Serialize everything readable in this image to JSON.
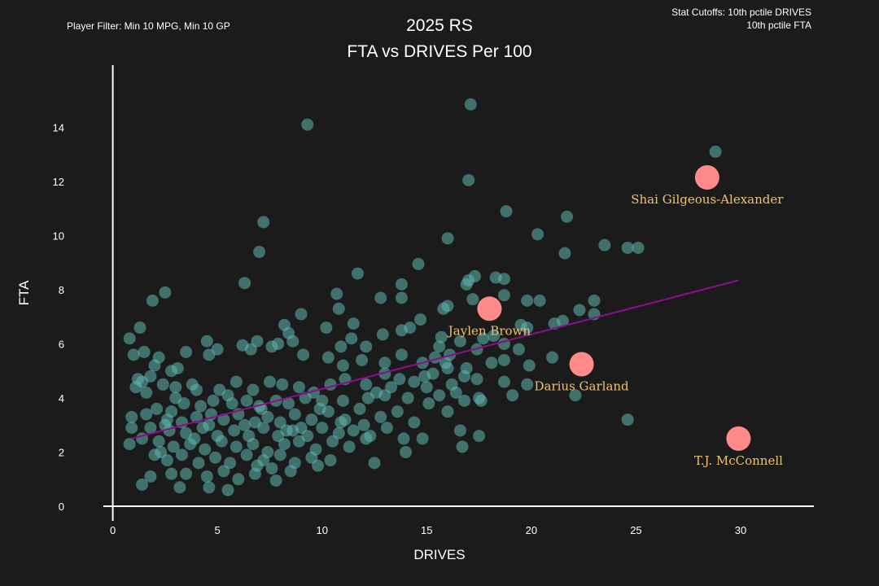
{
  "chart_data": {
    "type": "scatter",
    "title": "2025 RS",
    "subtitle": "FTA vs DRIVES Per 100",
    "filter_note": "Player Filter: Min 10 MPG, Min 10 GP",
    "cutoff_note_line1": "Stat Cutoffs: 10th pctile DRIVES",
    "cutoff_note_line2": "10th pctile FTA",
    "xlabel": "DRIVES",
    "ylabel": "FTA",
    "xlim": [
      -2.2,
      33.5
    ],
    "ylim": [
      -0.6,
      16.0
    ],
    "x_ticks": [
      0,
      5,
      10,
      15,
      20,
      25,
      30
    ],
    "y_ticks": [
      0,
      2,
      4,
      6,
      8,
      10,
      12,
      14
    ],
    "grid": false,
    "colors": {
      "points": "#5fb8b0",
      "highlight": "#ff8a8a",
      "trend": "#8a0f8c",
      "label": "#f0c36a",
      "axis": "#ffffff"
    },
    "trendline": {
      "x": [
        0.9,
        29.9
      ],
      "y": [
        2.5,
        8.35
      ]
    },
    "highlights": [
      {
        "name": "Shai Gilgeous-Alexander",
        "x": 28.4,
        "y": 12.15
      },
      {
        "name": "Jaylen Brown",
        "x": 18.0,
        "y": 7.3
      },
      {
        "name": "Darius Garland",
        "x": 22.4,
        "y": 5.25
      },
      {
        "name": "T.J. McConnell",
        "x": 29.9,
        "y": 2.5
      }
    ],
    "points": [
      [
        17.1,
        14.85
      ],
      [
        9.3,
        14.1
      ],
      [
        28.8,
        13.1
      ],
      [
        17.0,
        12.05
      ],
      [
        18.8,
        10.9
      ],
      [
        21.7,
        10.7
      ],
      [
        20.3,
        10.05
      ],
      [
        7.2,
        10.5
      ],
      [
        7.0,
        9.4
      ],
      [
        16.0,
        9.9
      ],
      [
        23.5,
        9.65
      ],
      [
        24.6,
        9.55
      ],
      [
        25.1,
        9.55
      ],
      [
        21.6,
        9.35
      ],
      [
        14.6,
        8.95
      ],
      [
        17.3,
        8.5
      ],
      [
        18.3,
        8.45
      ],
      [
        17.0,
        8.35
      ],
      [
        18.7,
        8.4
      ],
      [
        13.8,
        8.2
      ],
      [
        11.7,
        8.6
      ],
      [
        6.3,
        8.25
      ],
      [
        16.9,
        8.2
      ],
      [
        20.4,
        7.6
      ],
      [
        1.9,
        7.6
      ],
      [
        2.5,
        7.9
      ],
      [
        10.7,
        7.85
      ],
      [
        12.8,
        7.7
      ],
      [
        13.8,
        7.7
      ],
      [
        16.0,
        7.4
      ],
      [
        17.2,
        7.65
      ],
      [
        18.7,
        7.8
      ],
      [
        19.8,
        7.6
      ],
      [
        23.0,
        7.6
      ],
      [
        22.3,
        7.25
      ],
      [
        23.0,
        7.1
      ],
      [
        9.0,
        7.1
      ],
      [
        10.8,
        7.3
      ],
      [
        11.5,
        6.75
      ],
      [
        15.8,
        7.3
      ],
      [
        17.9,
        7.2
      ],
      [
        21.5,
        6.85
      ],
      [
        21.1,
        6.75
      ],
      [
        19.5,
        6.7
      ],
      [
        19.8,
        6.6
      ],
      [
        8.2,
        6.7
      ],
      [
        14.7,
        6.9
      ],
      [
        14.2,
        6.6
      ],
      [
        13.8,
        6.5
      ],
      [
        12.9,
        6.35
      ],
      [
        12.1,
        5.9
      ],
      [
        11.4,
        6.2
      ],
      [
        10.9,
        5.9
      ],
      [
        10.2,
        6.6
      ],
      [
        15.7,
        6.25
      ],
      [
        16.6,
        6.1
      ],
      [
        17.7,
        6.2
      ],
      [
        18.2,
        6.3
      ],
      [
        18.7,
        6.0
      ],
      [
        17.4,
        5.8
      ],
      [
        16.1,
        5.6
      ],
      [
        15.6,
        5.9
      ],
      [
        19.4,
        5.8
      ],
      [
        0.8,
        6.2
      ],
      [
        1.3,
        6.6
      ],
      [
        1.5,
        5.7
      ],
      [
        1.0,
        5.6
      ],
      [
        2.2,
        5.5
      ],
      [
        3.5,
        5.7
      ],
      [
        4.5,
        6.1
      ],
      [
        5.0,
        5.8
      ],
      [
        4.6,
        5.6
      ],
      [
        6.2,
        5.95
      ],
      [
        6.6,
        5.8
      ],
      [
        6.9,
        6.1
      ],
      [
        7.6,
        5.9
      ],
      [
        7.9,
        6.0
      ],
      [
        8.6,
        6.1
      ],
      [
        8.4,
        6.4
      ],
      [
        9.1,
        5.6
      ],
      [
        10.3,
        5.5
      ],
      [
        11.0,
        5.2
      ],
      [
        11.9,
        5.4
      ],
      [
        13.0,
        5.3
      ],
      [
        13.8,
        5.6
      ],
      [
        14.8,
        5.3
      ],
      [
        15.4,
        5.5
      ],
      [
        16.0,
        5.1
      ],
      [
        16.9,
        5.1
      ],
      [
        18.1,
        5.3
      ],
      [
        18.7,
        5.4
      ],
      [
        19.9,
        5.2
      ],
      [
        21.0,
        5.5
      ],
      [
        2.0,
        5.2
      ],
      [
        2.8,
        5.0
      ],
      [
        3.1,
        5.1
      ],
      [
        1.8,
        4.8
      ],
      [
        1.4,
        4.6
      ],
      [
        1.1,
        4.4
      ],
      [
        2.4,
        4.5
      ],
      [
        3.0,
        4.4
      ],
      [
        3.8,
        4.5
      ],
      [
        5.1,
        4.3
      ],
      [
        5.9,
        4.6
      ],
      [
        6.7,
        4.3
      ],
      [
        7.5,
        4.6
      ],
      [
        8.1,
        4.5
      ],
      [
        8.9,
        4.4
      ],
      [
        9.6,
        4.2
      ],
      [
        10.4,
        4.5
      ],
      [
        11.1,
        4.7
      ],
      [
        12.1,
        4.5
      ],
      [
        13.0,
        4.9
      ],
      [
        13.7,
        4.7
      ],
      [
        14.4,
        4.6
      ],
      [
        15.3,
        4.9
      ],
      [
        16.2,
        4.5
      ],
      [
        16.8,
        4.8
      ],
      [
        17.4,
        4.7
      ],
      [
        18.7,
        4.6
      ],
      [
        19.8,
        4.5
      ],
      [
        22.1,
        4.1
      ],
      [
        19.1,
        4.1
      ],
      [
        17.5,
        4.0
      ],
      [
        16.4,
        4.2
      ],
      [
        15.6,
        4.1
      ],
      [
        15.0,
        4.4
      ],
      [
        14.1,
        4.0
      ],
      [
        13.0,
        4.1
      ],
      [
        12.2,
        4.0
      ],
      [
        11.0,
        3.9
      ],
      [
        10.0,
        3.9
      ],
      [
        9.2,
        4.0
      ],
      [
        8.4,
        3.8
      ],
      [
        7.8,
        3.9
      ],
      [
        7.0,
        3.7
      ],
      [
        6.4,
        3.9
      ],
      [
        5.7,
        3.8
      ],
      [
        4.8,
        3.9
      ],
      [
        4.2,
        3.7
      ],
      [
        3.4,
        3.8
      ],
      [
        2.8,
        3.5
      ],
      [
        2.1,
        3.6
      ],
      [
        1.6,
        3.4
      ],
      [
        2.6,
        3.2
      ],
      [
        3.3,
        3.1
      ],
      [
        4.0,
        3.3
      ],
      [
        4.6,
        3.0
      ],
      [
        5.3,
        3.2
      ],
      [
        6.0,
        3.4
      ],
      [
        6.8,
        3.1
      ],
      [
        7.4,
        3.3
      ],
      [
        8.0,
        3.1
      ],
      [
        8.7,
        3.4
      ],
      [
        9.5,
        3.2
      ],
      [
        10.3,
        3.5
      ],
      [
        11.1,
        3.2
      ],
      [
        12.0,
        3.0
      ],
      [
        12.8,
        3.3
      ],
      [
        13.6,
        3.5
      ],
      [
        14.4,
        3.1
      ],
      [
        15.1,
        3.8
      ],
      [
        16.0,
        3.5
      ],
      [
        16.8,
        3.9
      ],
      [
        17.6,
        3.9
      ],
      [
        24.6,
        3.2
      ],
      [
        1.8,
        2.9
      ],
      [
        0.9,
        2.9
      ],
      [
        2.7,
        2.8
      ],
      [
        3.5,
        2.7
      ],
      [
        4.3,
        2.9
      ],
      [
        5.0,
        2.6
      ],
      [
        5.8,
        2.8
      ],
      [
        6.5,
        2.6
      ],
      [
        7.2,
        2.9
      ],
      [
        7.9,
        2.6
      ],
      [
        8.6,
        2.8
      ],
      [
        9.3,
        2.6
      ],
      [
        10.0,
        2.9
      ],
      [
        10.8,
        2.7
      ],
      [
        11.5,
        2.8
      ],
      [
        12.3,
        2.6
      ],
      [
        13.1,
        2.9
      ],
      [
        13.9,
        2.5
      ],
      [
        14.8,
        2.5
      ],
      [
        16.6,
        2.8
      ],
      [
        17.5,
        2.6
      ],
      [
        0.8,
        2.3
      ],
      [
        1.4,
        2.5
      ],
      [
        2.2,
        2.4
      ],
      [
        2.9,
        2.2
      ],
      [
        3.7,
        2.3
      ],
      [
        4.4,
        2.1
      ],
      [
        5.2,
        2.4
      ],
      [
        5.9,
        2.2
      ],
      [
        6.7,
        2.3
      ],
      [
        7.4,
        2.0
      ],
      [
        8.2,
        2.3
      ],
      [
        8.9,
        2.4
      ],
      [
        9.7,
        2.1
      ],
      [
        10.5,
        2.4
      ],
      [
        11.3,
        2.2
      ],
      [
        12.1,
        2.5
      ],
      [
        14.0,
        2.0
      ],
      [
        16.7,
        2.2
      ],
      [
        2.0,
        1.9
      ],
      [
        2.6,
        1.7
      ],
      [
        3.3,
        1.9
      ],
      [
        4.1,
        1.6
      ],
      [
        4.9,
        1.8
      ],
      [
        5.6,
        1.6
      ],
      [
        6.4,
        1.9
      ],
      [
        7.2,
        1.7
      ],
      [
        8.0,
        1.9
      ],
      [
        8.7,
        1.6
      ],
      [
        9.5,
        1.8
      ],
      [
        10.4,
        1.7
      ],
      [
        12.5,
        1.6
      ],
      [
        1.8,
        1.1
      ],
      [
        2.8,
        1.2
      ],
      [
        3.5,
        1.2
      ],
      [
        4.5,
        1.1
      ],
      [
        5.3,
        1.3
      ],
      [
        6.0,
        1.0
      ],
      [
        6.8,
        1.2
      ],
      [
        7.6,
        1.4
      ],
      [
        8.5,
        1.3
      ],
      [
        9.8,
        1.5
      ],
      [
        1.4,
        0.8
      ],
      [
        3.2,
        0.7
      ],
      [
        4.6,
        0.7
      ],
      [
        5.5,
        0.6
      ],
      [
        7.8,
        0.95
      ],
      [
        3.9,
        2.5
      ],
      [
        4.7,
        3.4
      ],
      [
        6.3,
        3.0
      ],
      [
        9.0,
        2.9
      ],
      [
        11.8,
        3.6
      ],
      [
        13.3,
        4.4
      ],
      [
        3.0,
        4.0
      ],
      [
        5.5,
        4.1
      ],
      [
        2.3,
        2.0
      ],
      [
        6.9,
        1.5
      ],
      [
        8.3,
        2.8
      ],
      [
        10.9,
        3.1
      ],
      [
        12.6,
        4.2
      ],
      [
        14.9,
        4.8
      ],
      [
        15.9,
        5.3
      ],
      [
        1.2,
        4.7
      ],
      [
        0.9,
        3.3
      ],
      [
        4.0,
        4.3
      ],
      [
        9.9,
        3.6
      ],
      [
        2.5,
        3.0
      ],
      [
        1.6,
        4.2
      ],
      [
        7.1,
        3.6
      ]
    ]
  }
}
